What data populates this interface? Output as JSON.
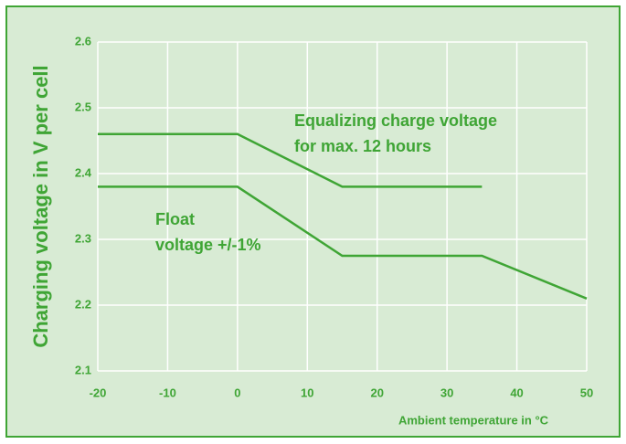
{
  "chart_data": {
    "type": "line",
    "y_label": "Charging voltage in V per cell",
    "x_label": "Ambient temperature in °C",
    "color": "#3fa535",
    "series": [
      {
        "name_lines": [
          "Equalizing charge voltage",
          "for max. 12 hours"
        ],
        "color": "#3fa535",
        "x": [
          -20,
          0,
          15,
          35
        ],
        "values": [
          2.46,
          2.46,
          2.38,
          2.38
        ]
      },
      {
        "name_lines": [
          "Float",
          "voltage +/-1%"
        ],
        "color": "#3fa535",
        "x": [
          -20,
          0,
          15,
          35,
          50
        ],
        "values": [
          2.38,
          2.38,
          2.275,
          2.275,
          2.21
        ]
      }
    ],
    "xlim": [
      -20,
      50
    ],
    "xticks": [
      -20,
      -10,
      0,
      10,
      20,
      30,
      40,
      50
    ],
    "ylim": [
      2.1,
      2.6
    ],
    "yticks": [
      2.1,
      2.2,
      2.3,
      2.4,
      2.5,
      2.6
    ],
    "grid": true
  }
}
